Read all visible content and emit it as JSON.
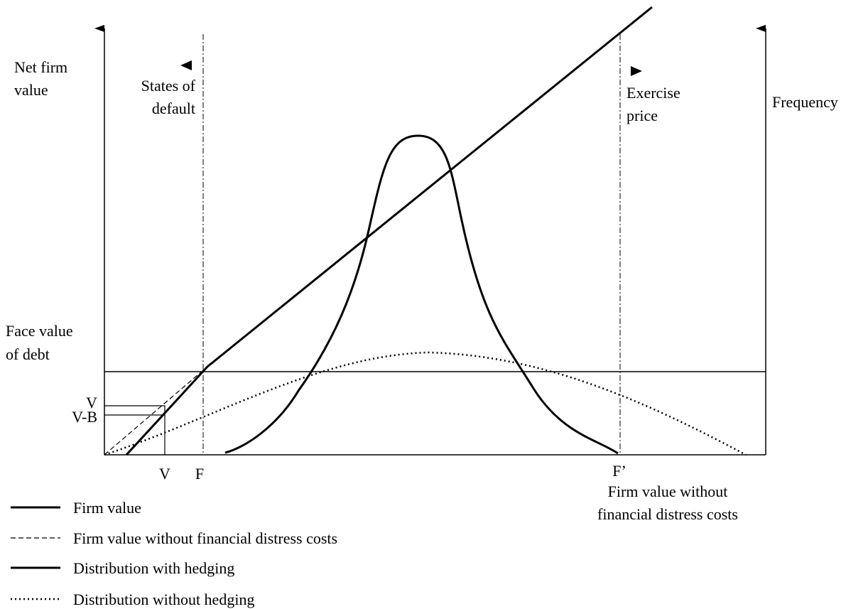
{
  "labels": {
    "left_axis": [
      "Net firm",
      "value"
    ],
    "right_axis": "Frequency",
    "default_states": [
      "States of",
      "default"
    ],
    "exercise": [
      "Exercise",
      "price"
    ],
    "face_value": [
      "Face value",
      "of debt"
    ],
    "v_y": "V",
    "vb_y": "V-B",
    "v_x": "V",
    "f_x": "F",
    "fprime_x": "F’",
    "x_axis": [
      "Firm value without",
      "financial distress costs"
    ]
  },
  "legend": [
    "Firm value",
    "Firm value without financial distress costs",
    "Distribution with hedging",
    "Distribution without hedging"
  ]
}
